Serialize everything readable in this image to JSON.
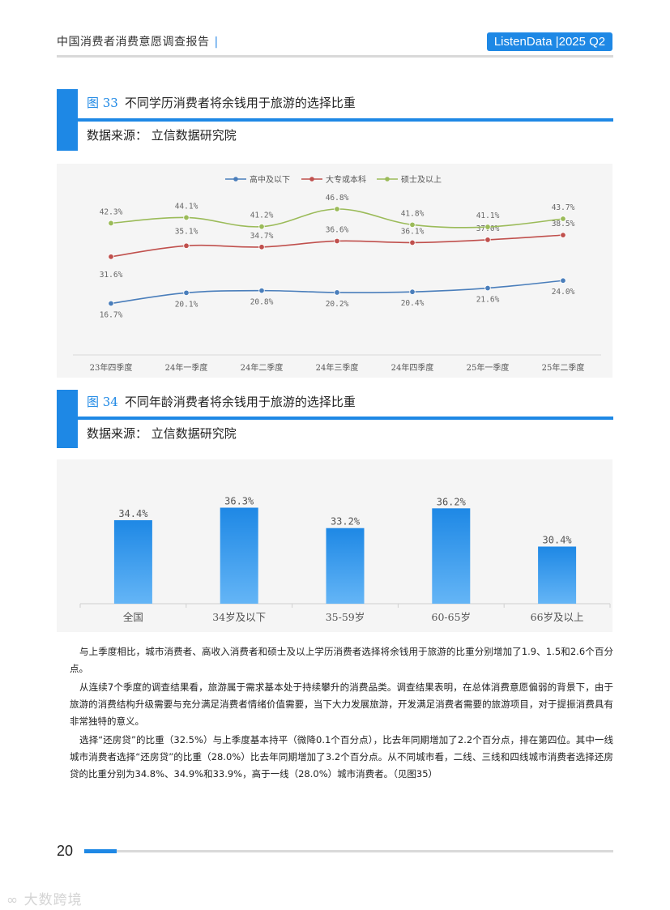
{
  "header": {
    "title": "中国消费者消费意愿调查报告",
    "separator": "|",
    "badge": "ListenData |2025 Q2"
  },
  "figure33": {
    "number": "图 33",
    "title": "不同学历消费者将余钱用于旅游的选择比重",
    "source": "数据来源：  立信数据研究院"
  },
  "figure34": {
    "number": "图 34",
    "title": "不同年龄消费者将余钱用于旅游的选择比重",
    "source": "数据来源：  立信数据研究院"
  },
  "chart_data": [
    {
      "type": "line",
      "title": "",
      "categories": [
        "23年四季度",
        "24年一季度",
        "24年二季度",
        "24年三季度",
        "24年四季度",
        "25年一季度",
        "25年二季度"
      ],
      "series": [
        {
          "name": "高中及以下",
          "color": "#4a7ebb",
          "values": [
            16.7,
            20.1,
            20.8,
            20.2,
            20.4,
            21.6,
            24.0
          ],
          "labels": [
            "16.7%",
            "20.1%",
            "20.8%",
            "20.2%",
            "20.4%",
            "21.6%",
            "24.0%"
          ]
        },
        {
          "name": "大专或本科",
          "color": "#c0504d",
          "values": [
            31.6,
            35.1,
            34.7,
            36.6,
            36.1,
            37.0,
            38.5
          ],
          "labels": [
            "31.6%",
            "35.1%",
            "34.7%",
            "36.6%",
            "36.1%",
            "37.0%",
            "38.5%"
          ]
        },
        {
          "name": "硕士及以上",
          "color": "#9bbb59",
          "values": [
            42.3,
            44.1,
            41.2,
            46.8,
            41.8,
            41.1,
            43.7
          ],
          "labels": [
            "42.3%",
            "44.1%",
            "41.2%",
            "46.8%",
            "41.8%",
            "41.1%",
            "43.7%"
          ]
        }
      ],
      "legend": "top-center",
      "grid": false
    },
    {
      "type": "bar",
      "title": "",
      "categories": [
        "全国",
        "34岁及以下",
        "35-59岁",
        "60-65岁",
        "66岁及以上"
      ],
      "values": [
        34.4,
        36.3,
        33.2,
        36.2,
        30.4
      ],
      "labels": [
        "34.4%",
        "36.3%",
        "33.2%",
        "36.2%",
        "30.4%"
      ],
      "color": "#1e88e5",
      "grid": false
    }
  ],
  "paragraphs": [
    "与上季度相比，城市消费者、高收入消费者和硕士及以上学历消费者选择将余钱用于旅游的比重分别增加了1.9、1.5和2.6个百分点。",
    "从连续7个季度的调查结果看，旅游属于需求基本处于持续攀升的消费品类。调查结果表明，在总体消费意愿偏弱的背景下，由于旅游的消费结构升级需要与充分满足消费者情绪价值需要，当下大力发展旅游，开发满足消费者需要的旅游项目，对于提振消费具有非常独特的意义。",
    "选择“还房贷”的比重（32.5%）与上季度基本持平（微降0.1个百分点），比去年同期增加了2.2个百分点，排在第四位。其中一线城市消费者选择“还房贷”的比重（28.0%）比去年同期增加了3.2个百分点。从不同城市看，二线、三线和四线城市消费者选择还房贷的比重分别为34.8%、34.9%和33.9%，高于一线（28.0%）城市消费者。（见图35）"
  ],
  "footer": {
    "page_number": "20",
    "watermark": "大数跨境"
  }
}
